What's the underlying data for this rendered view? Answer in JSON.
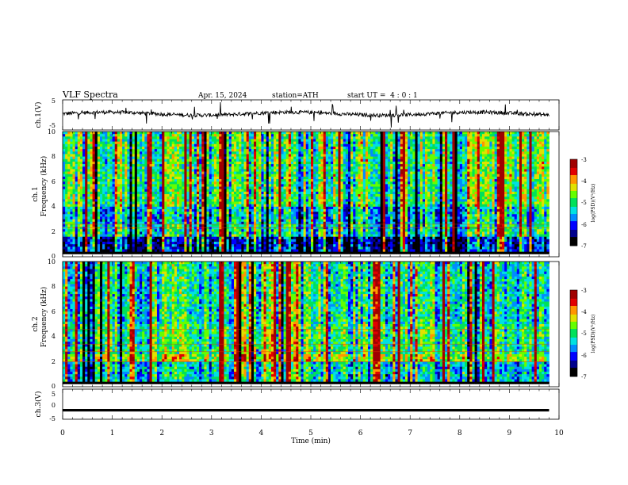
{
  "header": {
    "title": "VLF Spectra",
    "date": "Apr. 15, 2024",
    "station": "station=ATH",
    "start": "start UT =  4 : 0 : 1"
  },
  "colors": {
    "colormap": [
      "#000000",
      "#00008c",
      "#0000ff",
      "#008cff",
      "#00e1e1",
      "#00e15a",
      "#64ff00",
      "#e1e100",
      "#ff9600",
      "#e10000",
      "#a00000",
      "#ffffff"
    ],
    "trace": "#000000"
  },
  "chart_data": [
    {
      "type": "line",
      "panel": "ch1-waveform",
      "ylabel": "ch.1(V)",
      "ylim": [
        -5,
        5
      ],
      "yticks": [
        "5",
        "-5"
      ],
      "xlim": [
        0,
        10
      ],
      "description_series": "noisy waveform centered near 0 V spanning 0 to ~9.8 min"
    },
    {
      "type": "heatmap",
      "panel": "ch1-spectrogram",
      "ylabel_top": "ch.1",
      "ylabel": "Frequency (kHz)",
      "ylim": [
        0,
        10
      ],
      "yticks": [
        "0",
        "2",
        "4",
        "6",
        "8",
        "10"
      ],
      "xlim": [
        0,
        10
      ],
      "data_end_min": 9.8,
      "colorbar": {
        "label": "log(PSD)(V²/Hz)",
        "range": [
          -7,
          -3
        ],
        "ticks": [
          "-3",
          "-4",
          "-5",
          "-6",
          "-7"
        ]
      }
    },
    {
      "type": "heatmap",
      "panel": "ch2-spectrogram",
      "ylabel_top": "ch.2",
      "ylabel": "Frequency (kHz)",
      "ylim": [
        0,
        10
      ],
      "yticks": [
        "0",
        "2",
        "4",
        "6",
        "8",
        "10"
      ],
      "xlim": [
        0,
        10
      ],
      "data_end_min": 9.8,
      "colorbar": {
        "label": "log(PSD)(V²/Hz)",
        "range": [
          -7,
          -3
        ],
        "ticks": [
          "-3",
          "-4",
          "-5",
          "-6",
          "-7"
        ]
      }
    },
    {
      "type": "line",
      "panel": "ch3-waveform",
      "ylabel": "ch.3(V)",
      "ylim": [
        -5,
        5
      ],
      "yticks": [
        "5",
        "0",
        "-5"
      ],
      "xlim": [
        0,
        10
      ],
      "series_level": -2
    }
  ],
  "xaxis": {
    "label": "Time (min)",
    "ticks": [
      "0",
      "1",
      "2",
      "3",
      "4",
      "5",
      "6",
      "7",
      "8",
      "9",
      "10"
    ]
  }
}
